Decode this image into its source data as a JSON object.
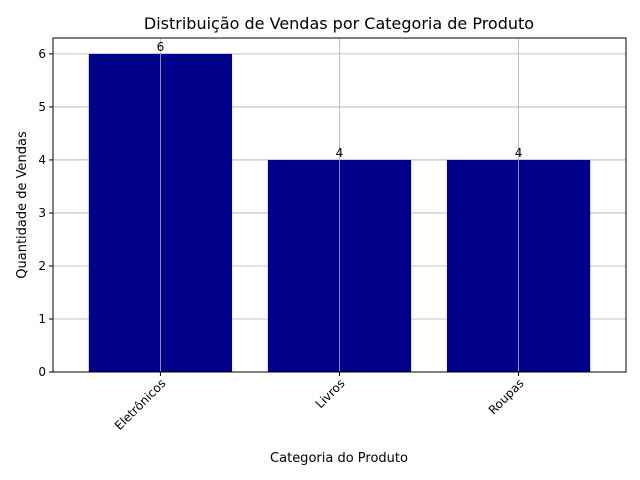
{
  "chart_data": {
    "type": "bar",
    "title": "Distribuição de Vendas por Categoria de Produto",
    "xlabel": "Categoria do Produto",
    "ylabel": "Quantidade de Vendas",
    "categories": [
      "Eletrônicos",
      "Livros",
      "Roupas"
    ],
    "values": [
      6,
      4,
      4
    ],
    "data_labels": [
      "6",
      "4",
      "4"
    ],
    "ylim": [
      0,
      6.3
    ],
    "yticks": [
      0,
      1,
      2,
      3,
      4,
      5,
      6
    ],
    "ytick_labels": [
      "0",
      "1",
      "2",
      "3",
      "4",
      "5",
      "6"
    ],
    "grid": true,
    "bar_color": "#00008b",
    "grid_color": "#b0b0b0",
    "xtick_rotation_deg": 45
  }
}
